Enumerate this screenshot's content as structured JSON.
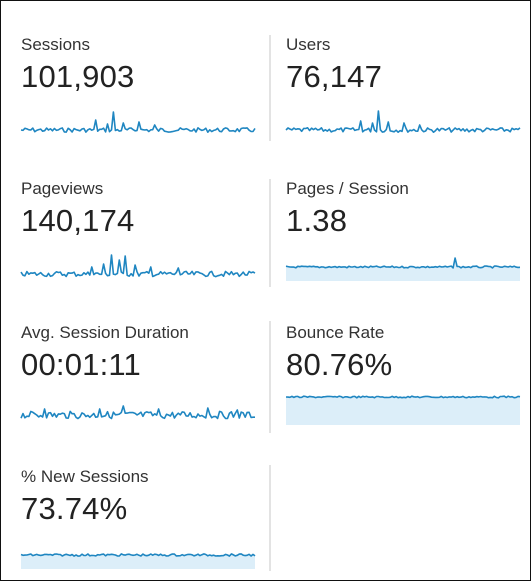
{
  "colors": {
    "line": "#1f86c1",
    "fill": "#dceef9",
    "divider": "#e3e3e3",
    "label": "#333333",
    "value": "#222222"
  },
  "metrics": [
    {
      "label": "Sessions",
      "value": "101,903"
    },
    {
      "label": "Users",
      "value": "76,147"
    },
    {
      "label": "Pageviews",
      "value": "140,174"
    },
    {
      "label": "Pages / Session",
      "value": "1.38"
    },
    {
      "label": "Avg. Session Duration",
      "value": "00:01:11"
    },
    {
      "label": "Bounce Rate",
      "value": "80.76%"
    },
    {
      "label": "% New Sessions",
      "value": "73.74%"
    }
  ]
}
